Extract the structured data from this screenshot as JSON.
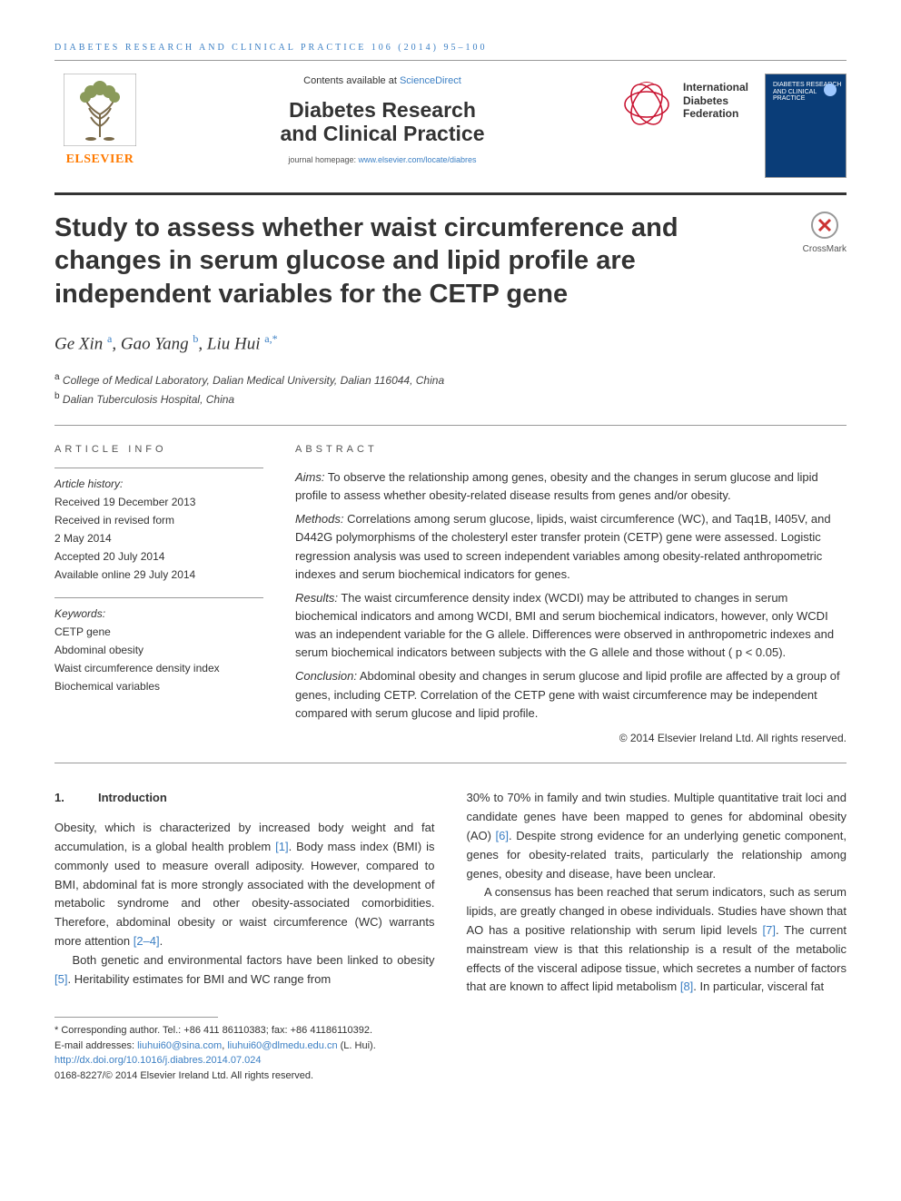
{
  "running_head": "DIABETES RESEARCH AND CLINICAL PRACTICE 106 (2014) 95–100",
  "masthead": {
    "contents_prefix": "Contents available at ",
    "contents_link": "ScienceDirect",
    "journal_line1": "Diabetes Research",
    "journal_line2": "and Clinical Practice",
    "homepage_prefix": "journal homepage: ",
    "homepage_link": "www.elsevier.com/locate/diabres",
    "elsevier": "ELSEVIER",
    "idf_line1": "International",
    "idf_line2": "Diabetes",
    "idf_line3": "Federation",
    "cover_label": "DIABETES RESEARCH AND CLINICAL PRACTICE"
  },
  "crossmark_label": "CrossMark",
  "title": "Study to assess whether waist circumference and changes in serum glucose and lipid profile are independent variables for the CETP gene",
  "authors_html": "Ge Xin <sup>a</sup>, Gao Yang <sup>b</sup>, Liu Hui <sup>a,*</sup>",
  "affiliations": [
    "a College of Medical Laboratory, Dalian Medical University, Dalian 116044, China",
    "b Dalian Tuberculosis Hospital, China"
  ],
  "article_info": {
    "heading": "ARTICLE INFO",
    "history_label": "Article history:",
    "received": "Received 19 December 2013",
    "revised1": "Received in revised form",
    "revised2": "2 May 2014",
    "accepted": "Accepted 20 July 2014",
    "online": "Available online 29 July 2014",
    "keywords_label": "Keywords:",
    "keywords": [
      "CETP gene",
      "Abdominal obesity",
      "Waist circumference density index",
      "Biochemical variables"
    ]
  },
  "abstract": {
    "heading": "ABSTRACT",
    "aims_label": "Aims:",
    "aims": " To observe the relationship among genes, obesity and the changes in serum glucose and lipid profile to assess whether obesity-related disease results from genes and/or obesity.",
    "methods_label": "Methods:",
    "methods": " Correlations among serum glucose, lipids, waist circumference (WC), and Taq1B, I405V, and D442G polymorphisms of the cholesteryl ester transfer protein (CETP) gene were assessed. Logistic regression analysis was used to screen independent variables among obesity-related anthropometric indexes and serum biochemical indicators for genes.",
    "results_label": "Results:",
    "results": " The waist circumference density index (WCDI) may be attributed to changes in serum biochemical indicators and among WCDI, BMI and serum biochemical indicators, however, only WCDI was an independent variable for the G allele. Differences were observed in anthropometric indexes and serum biochemical indicators between subjects with the G allele and those without ( p < 0.05).",
    "conclusion_label": "Conclusion:",
    "conclusion": " Abdominal obesity and changes in serum glucose and lipid profile are affected by a group of genes, including CETP. Correlation of the CETP gene with waist circumference may be independent compared with serum glucose and lipid profile.",
    "copyright": "© 2014 Elsevier Ireland Ltd. All rights reserved."
  },
  "body": {
    "sec_num": "1.",
    "sec_title": "Introduction",
    "col1_p1_a": "Obesity, which is characterized by increased body weight and fat accumulation, is a global health problem ",
    "ref1": "[1]",
    "col1_p1_b": ". Body mass index (BMI) is commonly used to measure overall adiposity. However, compared to BMI, abdominal fat is more strongly associated with the development of metabolic syndrome and other obesity-associated comorbidities. Therefore, abdominal obesity or waist circumference (WC) warrants more attention ",
    "ref2": "[2–4]",
    "col1_p1_c": ".",
    "col1_p2_a": "Both genetic and environmental factors have been linked to obesity ",
    "ref5": "[5]",
    "col1_p2_b": ". Heritability estimates for BMI and WC range from",
    "col2_p1_a": "30% to 70% in family and twin studies. Multiple quantitative trait loci and candidate genes have been mapped to genes for abdominal obesity (AO) ",
    "ref6": "[6]",
    "col2_p1_b": ". Despite strong evidence for an underlying genetic component, genes for obesity-related traits, particularly the relationship among genes, obesity and disease, have been unclear.",
    "col2_p2_a": "A consensus has been reached that serum indicators, such as serum lipids, are greatly changed in obese individuals. Studies have shown that AO has a positive relationship with serum lipid levels ",
    "ref7": "[7]",
    "col2_p2_b": ". The current mainstream view is that this relationship is a result of the metabolic effects of the visceral adipose tissue, which secretes a number of factors that are known to affect lipid metabolism ",
    "ref8": "[8]",
    "col2_p2_c": ". In particular, visceral fat"
  },
  "footnotes": {
    "corr": "* Corresponding author. Tel.: +86 411 86110383; fax: +86 41186110392.",
    "email_prefix": "E-mail addresses: ",
    "email1": "liuhui60@sina.com",
    "email_sep": ", ",
    "email2": "liuhui60@dlmedu.edu.cn",
    "email_suffix": " (L. Hui).",
    "doi": "http://dx.doi.org/10.1016/j.diabres.2014.07.024",
    "issn": "0168-8227/© 2014 Elsevier Ireland Ltd. All rights reserved."
  },
  "colors": {
    "link": "#3b7fc4",
    "accent_orange": "#ff7a00",
    "idf_red": "#c8102e",
    "cover_bg": "#0a3d78"
  }
}
